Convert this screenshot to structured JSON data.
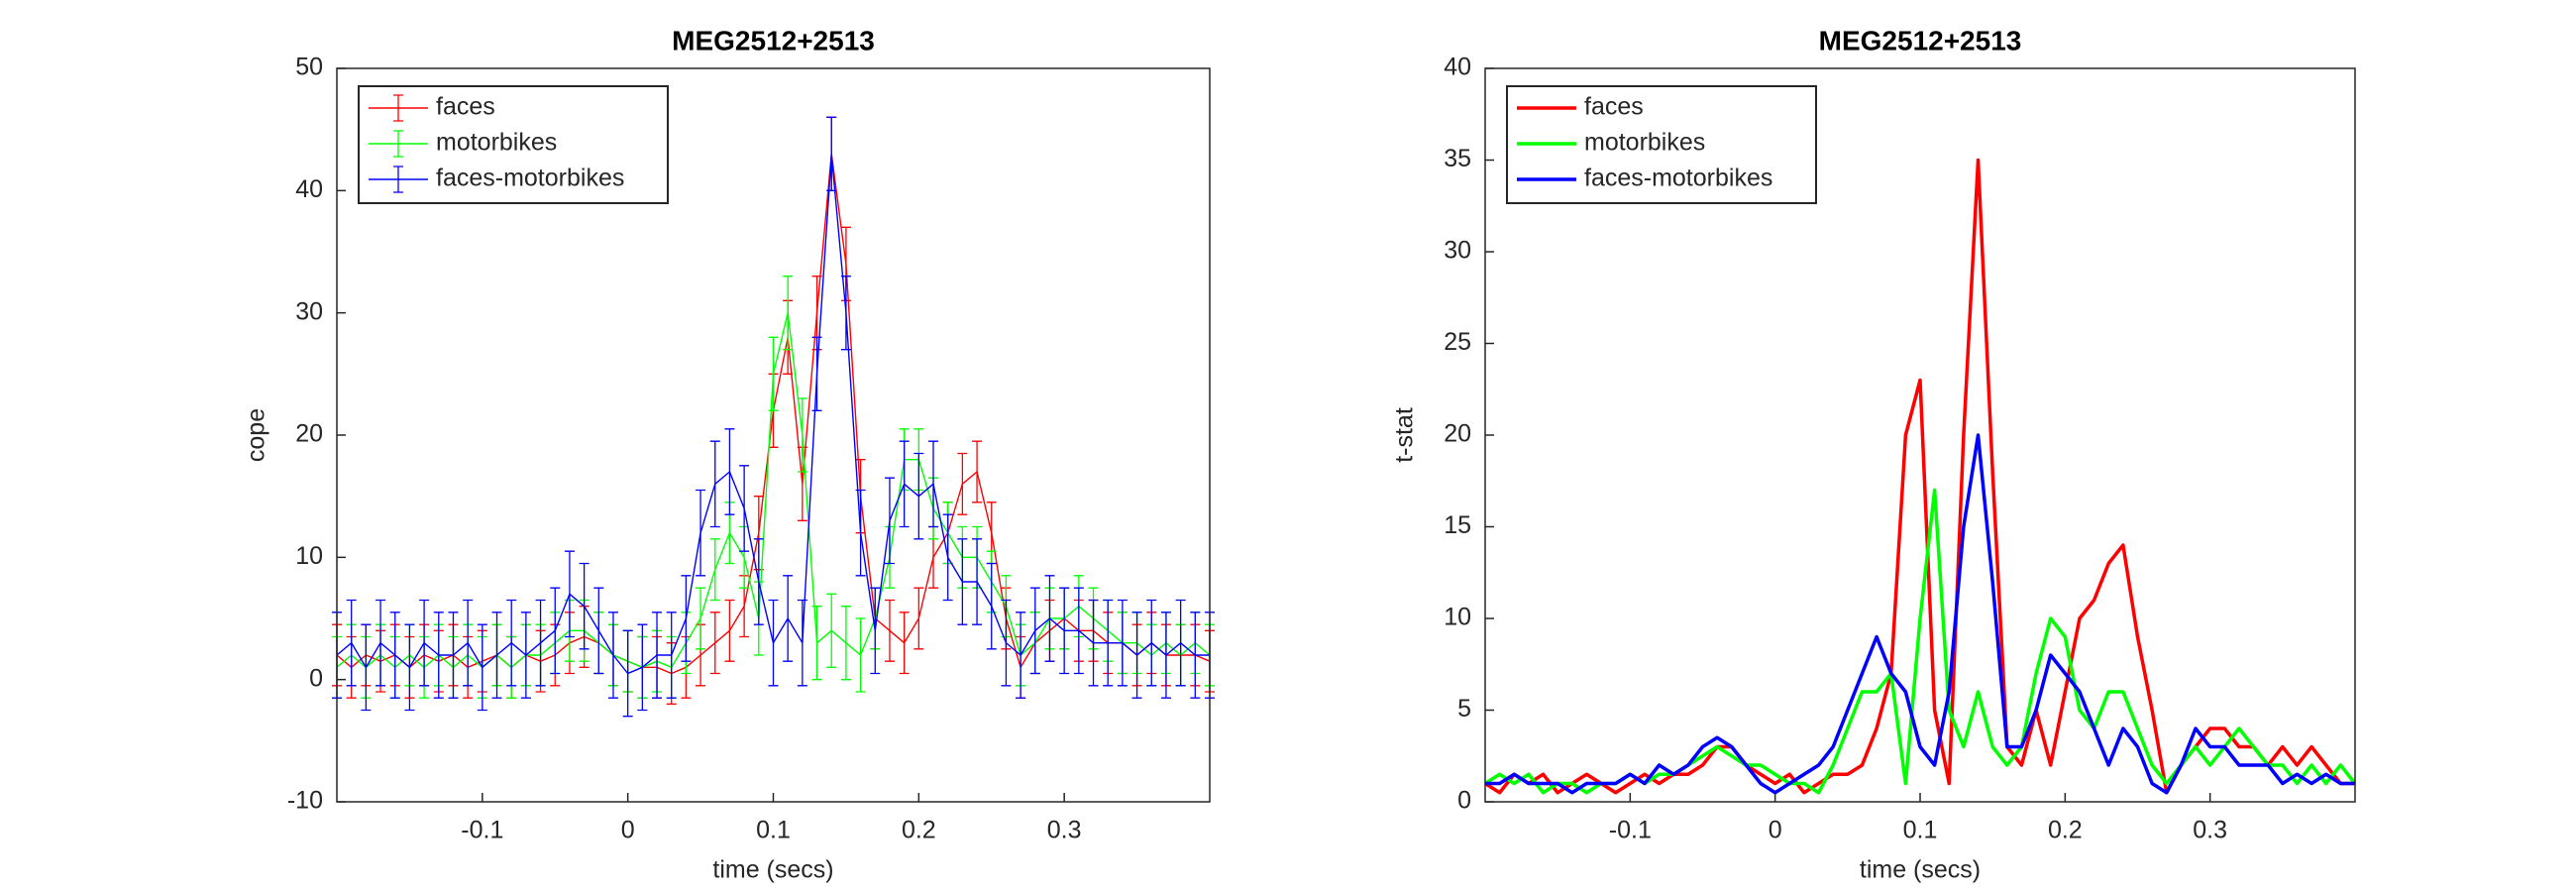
{
  "chart_data": [
    {
      "type": "errorbar",
      "title": "MEG2512+2513",
      "x_label": "time (secs)",
      "y_label": "cope",
      "x": [
        -0.2,
        -0.19,
        -0.18,
        -0.17,
        -0.16,
        -0.15,
        -0.14,
        -0.13,
        -0.12,
        -0.11,
        -0.1,
        -0.09,
        -0.08,
        -0.07,
        -0.06,
        -0.05,
        -0.04,
        -0.03,
        -0.02,
        -0.01,
        0,
        0.01,
        0.02,
        0.03,
        0.04,
        0.05,
        0.06,
        0.07,
        0.08,
        0.09,
        0.1,
        0.11,
        0.12,
        0.13,
        0.14,
        0.15,
        0.16,
        0.17,
        0.18,
        0.19,
        0.2,
        0.21,
        0.22,
        0.23,
        0.24,
        0.25,
        0.26,
        0.27,
        0.28,
        0.29,
        0.3,
        0.31,
        0.32,
        0.33,
        0.34,
        0.35,
        0.36,
        0.37,
        0.38,
        0.39,
        0.4
      ],
      "series": [
        {
          "name": "faces",
          "color": "#ff0000",
          "values": [
            2,
            1,
            2,
            1.5,
            2,
            1,
            2,
            1.5,
            2,
            1,
            1.5,
            2,
            1,
            2,
            1.5,
            2,
            3,
            3.5,
            3,
            2,
            1.5,
            1,
            1,
            0.5,
            1,
            2,
            3,
            4,
            6,
            12,
            22,
            28,
            16,
            30,
            43,
            34,
            15,
            5,
            4,
            3,
            5,
            10,
            12,
            16,
            17,
            12,
            5,
            1,
            3,
            4,
            5,
            4,
            4,
            3,
            3,
            2,
            3,
            2,
            2,
            2,
            1.5
          ],
          "errors": [
            2.5,
            2.5,
            2.5,
            2.5,
            2.5,
            2.5,
            2.5,
            2.5,
            2.5,
            2.5,
            2.5,
            2.5,
            2.5,
            2.5,
            2.5,
            2.5,
            2.5,
            2.5,
            2.5,
            2.5,
            2.5,
            2.5,
            2.5,
            2.5,
            2.5,
            2.5,
            2.5,
            2.5,
            2.5,
            3,
            3,
            3,
            3,
            3,
            3,
            3,
            3,
            2.5,
            2.5,
            2.5,
            2.5,
            2.5,
            2.5,
            2.5,
            2.5,
            2.5,
            2.5,
            2.5,
            2.5,
            2.5,
            2.5,
            2.5,
            2.5,
            2.5,
            2.5,
            2.5,
            2.5,
            2.5,
            2.5,
            2.5,
            2.5
          ]
        },
        {
          "name": "motorbikes",
          "color": "#00ff00",
          "values": [
            1,
            2,
            1,
            2,
            1,
            2,
            1,
            2,
            1,
            2,
            1,
            2,
            1,
            2,
            2,
            3,
            4,
            4,
            3,
            2,
            1.5,
            1,
            1.5,
            1,
            3,
            5,
            9,
            12,
            10,
            5,
            25,
            30,
            20,
            3,
            4,
            3,
            2,
            5,
            10,
            18,
            18,
            14,
            12,
            10,
            10,
            8,
            6,
            2,
            3,
            5,
            5,
            6,
            5,
            4,
            3,
            3,
            2,
            3,
            2,
            3,
            2
          ],
          "errors": [
            2.5,
            2.5,
            2.5,
            2.5,
            2.5,
            2.5,
            2.5,
            2.5,
            2.5,
            2.5,
            2.5,
            2.5,
            2.5,
            2.5,
            2.5,
            2.5,
            2.5,
            2.5,
            2.5,
            2.5,
            2.5,
            2.5,
            2.5,
            2.5,
            2.5,
            2.5,
            2.5,
            2.5,
            2.5,
            3,
            3,
            3,
            3,
            3,
            3,
            3,
            3,
            2.5,
            2.5,
            2.5,
            2.5,
            2.5,
            2.5,
            2.5,
            2.5,
            2.5,
            2.5,
            2.5,
            2.5,
            2.5,
            2.5,
            2.5,
            2.5,
            2.5,
            2.5,
            2.5,
            2.5,
            2.5,
            2.5,
            2.5,
            2.5
          ]
        },
        {
          "name": "faces-motorbikes",
          "color": "#0000ff",
          "values": [
            2,
            3,
            1,
            3,
            2,
            1,
            3,
            2,
            2,
            3,
            1,
            2,
            3,
            2,
            3,
            4,
            7,
            6,
            4,
            2,
            0.5,
            1,
            2,
            2,
            5,
            12,
            16,
            17,
            14,
            8,
            3,
            5,
            3,
            25,
            43,
            30,
            12,
            4,
            13,
            16,
            15,
            16,
            10,
            8,
            8,
            6,
            3,
            2,
            4,
            5,
            4,
            4,
            3,
            3,
            3,
            2,
            3,
            2,
            3,
            2,
            2
          ],
          "errors": [
            3.5,
            3.5,
            3.5,
            3.5,
            3.5,
            3.5,
            3.5,
            3.5,
            3.5,
            3.5,
            3.5,
            3.5,
            3.5,
            3.5,
            3.5,
            3.5,
            3.5,
            3.5,
            3.5,
            3.5,
            3.5,
            3.5,
            3.5,
            3.5,
            3.5,
            3.5,
            3.5,
            3.5,
            3.5,
            3.5,
            3.5,
            3.5,
            3.5,
            3,
            3,
            3,
            3.5,
            3.5,
            3.5,
            3.5,
            3.5,
            3.5,
            3.5,
            3.5,
            3.5,
            3.5,
            3.5,
            3.5,
            3.5,
            3.5,
            3.5,
            3.5,
            3.5,
            3.5,
            3.5,
            3.5,
            3.5,
            3.5,
            3.5,
            3.5,
            3.5
          ]
        }
      ],
      "xlim": [
        -0.2,
        0.4
      ],
      "xticks": [
        -0.1,
        0,
        0.1,
        0.2,
        0.3
      ],
      "ylim": [
        -10,
        50
      ],
      "yticks": [
        -10,
        0,
        10,
        20,
        30,
        40,
        50
      ],
      "legend": "northwest"
    },
    {
      "type": "line",
      "title": "MEG2512+2513",
      "x_label": "time (secs)",
      "y_label": "t-stat",
      "x": [
        -0.2,
        -0.19,
        -0.18,
        -0.17,
        -0.16,
        -0.15,
        -0.14,
        -0.13,
        -0.12,
        -0.11,
        -0.1,
        -0.09,
        -0.08,
        -0.07,
        -0.06,
        -0.05,
        -0.04,
        -0.03,
        -0.02,
        -0.01,
        0,
        0.01,
        0.02,
        0.03,
        0.04,
        0.05,
        0.06,
        0.07,
        0.08,
        0.09,
        0.1,
        0.11,
        0.12,
        0.13,
        0.14,
        0.15,
        0.16,
        0.17,
        0.18,
        0.19,
        0.2,
        0.21,
        0.22,
        0.23,
        0.24,
        0.25,
        0.26,
        0.27,
        0.28,
        0.29,
        0.3,
        0.31,
        0.32,
        0.33,
        0.34,
        0.35,
        0.36,
        0.37,
        0.38,
        0.39,
        0.4
      ],
      "series": [
        {
          "name": "faces",
          "color": "#ff0000",
          "values": [
            1,
            0.5,
            1.5,
            1,
            1.5,
            0.5,
            1,
            1.5,
            1,
            0.5,
            1,
            1.5,
            1,
            1.5,
            1.5,
            2,
            3,
            3,
            2,
            1.5,
            1,
            1.5,
            0.5,
            1,
            1.5,
            1.5,
            2,
            4,
            7,
            20,
            23,
            5,
            1,
            20,
            35,
            18,
            3,
            2,
            5,
            2,
            6,
            10,
            11,
            13,
            14,
            9,
            5,
            0.5,
            2,
            3,
            4,
            4,
            3,
            3,
            2,
            3,
            2,
            3,
            2,
            1,
            1
          ]
        },
        {
          "name": "motorbikes",
          "color": "#00ff00",
          "values": [
            1,
            1.5,
            1,
            1.5,
            0.5,
            1,
            1,
            0.5,
            1,
            1,
            1.5,
            1,
            1.5,
            1.5,
            2,
            2.5,
            3,
            2.5,
            2,
            2,
            1.5,
            1,
            1,
            0.5,
            2,
            4,
            6,
            6,
            7,
            1,
            10,
            17,
            5,
            3,
            6,
            3,
            2,
            3,
            7,
            10,
            9,
            5,
            4,
            6,
            6,
            4,
            2,
            1,
            2,
            3,
            2,
            3,
            4,
            3,
            2,
            2,
            1,
            2,
            1,
            2,
            1
          ]
        },
        {
          "name": "faces-motorbikes",
          "color": "#0000ff",
          "values": [
            1,
            1,
            1.5,
            1,
            1,
            1,
            0.5,
            1,
            1,
            1,
            1.5,
            1,
            2,
            1.5,
            2,
            3,
            3.5,
            3,
            2,
            1,
            0.5,
            1,
            1.5,
            2,
            3,
            5,
            7,
            9,
            7,
            6,
            3,
            2,
            6,
            15,
            20,
            12,
            3,
            3,
            5,
            8,
            7,
            6,
            4,
            2,
            4,
            3,
            1,
            0.5,
            2,
            4,
            3,
            3,
            2,
            2,
            2,
            1,
            1.5,
            1,
            1.5,
            1,
            1
          ]
        }
      ],
      "xlim": [
        -0.2,
        0.4
      ],
      "xticks": [
        -0.1,
        0,
        0.1,
        0.2,
        0.3
      ],
      "ylim": [
        0,
        40
      ],
      "yticks": [
        0,
        5,
        10,
        15,
        20,
        25,
        30,
        35,
        40
      ],
      "legend": "northwest"
    }
  ]
}
